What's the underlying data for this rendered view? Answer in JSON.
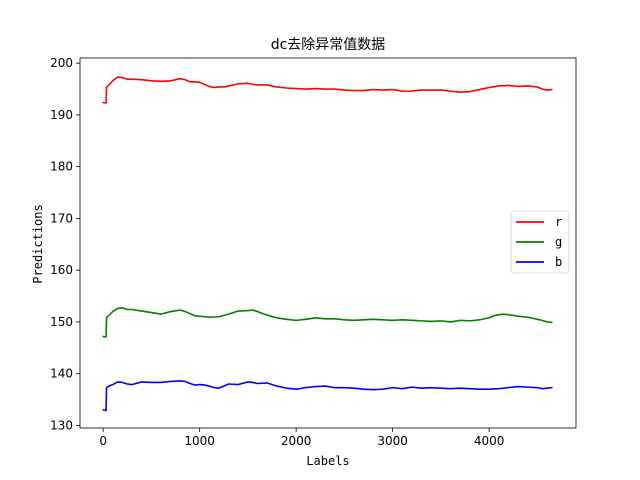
{
  "chart_data": {
    "type": "line",
    "title": "dc去除异常值数据",
    "xlabel": "Labels",
    "ylabel": "Predictions",
    "xlim": [
      -240,
      4900
    ],
    "ylim": [
      129.5,
      201
    ],
    "xticks": [
      0,
      1000,
      2000,
      3000,
      4000
    ],
    "yticks": [
      130,
      140,
      150,
      160,
      170,
      180,
      190,
      200
    ],
    "legend_position": "right",
    "grid": false,
    "series": [
      {
        "name": "r",
        "color": "#ff0000",
        "x": [
          0,
          30,
          35,
          60,
          100,
          150,
          200,
          250,
          300,
          400,
          500,
          600,
          700,
          800,
          850,
          900,
          950,
          1000,
          1100,
          1150,
          1200,
          1250,
          1300,
          1400,
          1500,
          1550,
          1600,
          1700,
          1800,
          1900,
          2000,
          2100,
          2200,
          2300,
          2400,
          2500,
          2600,
          2700,
          2800,
          2900,
          3000,
          3100,
          3200,
          3300,
          3400,
          3500,
          3600,
          3700,
          3800,
          3900,
          4000,
          4100,
          4200,
          4300,
          4400,
          4500,
          4550,
          4600,
          4650
        ],
        "y": [
          192.4,
          192.3,
          195.4,
          195.8,
          196.6,
          197.3,
          197.2,
          196.9,
          196.9,
          196.8,
          196.6,
          196.5,
          196.6,
          197.0,
          196.8,
          196.4,
          196.4,
          196.3,
          195.5,
          195.3,
          195.4,
          195.4,
          195.6,
          196.0,
          196.1,
          195.9,
          195.8,
          195.8,
          195.4,
          195.2,
          195.1,
          195.0,
          195.1,
          195.0,
          195.0,
          194.8,
          194.7,
          194.7,
          194.9,
          194.8,
          194.9,
          194.6,
          194.6,
          194.8,
          194.8,
          194.8,
          194.6,
          194.4,
          194.5,
          194.9,
          195.3,
          195.6,
          195.7,
          195.5,
          195.6,
          195.4,
          195.0,
          194.8,
          194.9
        ]
      },
      {
        "name": "g",
        "color": "#008000",
        "x": [
          0,
          30,
          35,
          60,
          100,
          150,
          200,
          250,
          300,
          400,
          500,
          600,
          700,
          800,
          850,
          900,
          950,
          1000,
          1100,
          1200,
          1300,
          1400,
          1500,
          1550,
          1600,
          1700,
          1800,
          1900,
          2000,
          2100,
          2200,
          2300,
          2400,
          2500,
          2600,
          2700,
          2800,
          2900,
          3000,
          3100,
          3200,
          3300,
          3400,
          3500,
          3600,
          3700,
          3800,
          3900,
          4000,
          4050,
          4100,
          4150,
          4200,
          4300,
          4400,
          4500,
          4550,
          4600,
          4650
        ],
        "y": [
          147.2,
          147.1,
          150.8,
          151.3,
          152.0,
          152.6,
          152.7,
          152.4,
          152.4,
          152.1,
          151.8,
          151.5,
          152.0,
          152.3,
          152.0,
          151.6,
          151.2,
          151.1,
          150.9,
          151.0,
          151.5,
          152.1,
          152.2,
          152.3,
          152.0,
          151.3,
          150.8,
          150.5,
          150.3,
          150.5,
          150.8,
          150.6,
          150.6,
          150.4,
          150.3,
          150.4,
          150.5,
          150.4,
          150.3,
          150.4,
          150.3,
          150.2,
          150.1,
          150.2,
          150.0,
          150.3,
          150.2,
          150.4,
          150.8,
          151.2,
          151.4,
          151.5,
          151.4,
          151.1,
          150.9,
          150.5,
          150.3,
          150.0,
          149.9
        ]
      },
      {
        "name": "b",
        "color": "#0000ff",
        "x": [
          0,
          30,
          35,
          60,
          100,
          150,
          200,
          250,
          300,
          400,
          500,
          600,
          700,
          800,
          850,
          900,
          950,
          1000,
          1050,
          1100,
          1150,
          1200,
          1250,
          1300,
          1400,
          1500,
          1550,
          1600,
          1700,
          1800,
          1900,
          2000,
          2100,
          2200,
          2300,
          2400,
          2500,
          2600,
          2700,
          2800,
          2900,
          3000,
          3100,
          3200,
          3300,
          3400,
          3500,
          3600,
          3700,
          3800,
          3900,
          4000,
          4100,
          4200,
          4300,
          4400,
          4500,
          4550,
          4600,
          4650
        ],
        "y": [
          133.0,
          132.9,
          137.3,
          137.6,
          137.9,
          138.4,
          138.3,
          138.0,
          137.9,
          138.4,
          138.3,
          138.3,
          138.5,
          138.6,
          138.5,
          138.1,
          137.8,
          137.9,
          137.8,
          137.6,
          137.3,
          137.2,
          137.6,
          138.0,
          137.9,
          138.4,
          138.3,
          138.1,
          138.2,
          137.6,
          137.2,
          137.0,
          137.3,
          137.5,
          137.6,
          137.3,
          137.3,
          137.2,
          137.0,
          136.9,
          137.0,
          137.3,
          137.1,
          137.4,
          137.2,
          137.3,
          137.2,
          137.1,
          137.2,
          137.1,
          137.0,
          137.0,
          137.1,
          137.3,
          137.5,
          137.4,
          137.3,
          137.1,
          137.2,
          137.3
        ]
      }
    ]
  }
}
